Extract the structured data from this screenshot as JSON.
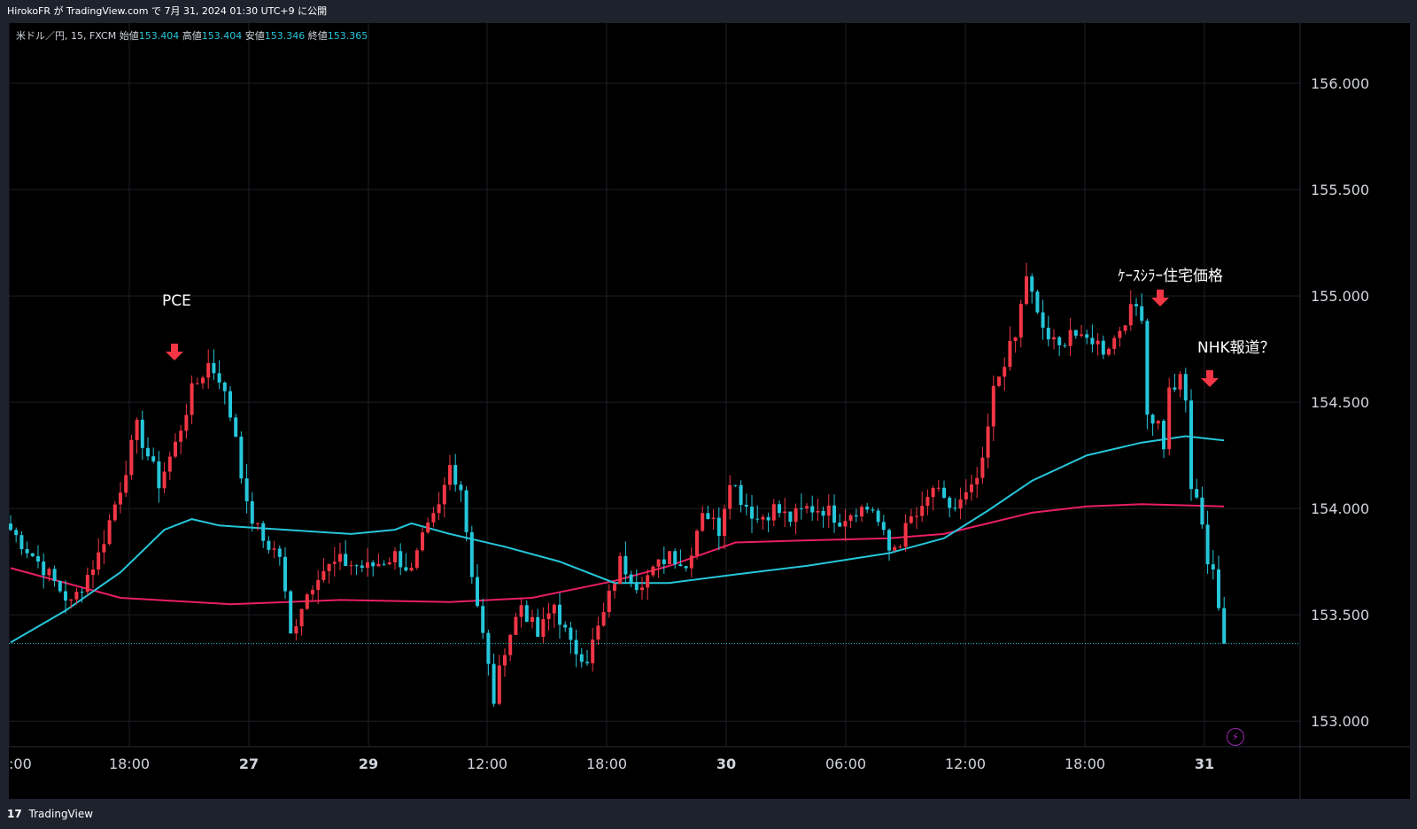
{
  "header": {
    "published_by": "HirokoFR が TradingView.com で 7月 31, 2024 01:30 UTC+9 に公開"
  },
  "legend": {
    "symbol": "米ドル／円, 15, FXCM",
    "open_label": "始値",
    "open": "153.404",
    "high_label": "高値",
    "high": "153.404",
    "low_label": "安値",
    "low": "153.346",
    "close_label": "終値",
    "close": "153.365"
  },
  "annotations": {
    "pce": "PCE",
    "case_shiller": "ｹｰｽｼﾗｰ住宅価格",
    "nhk": "NHK報道？"
  },
  "footer": {
    "brand": "TradingView",
    "logo_glyph": "17"
  },
  "icons": {
    "alert": "lightning-bolt-icon"
  },
  "colors": {
    "up": "#f23645",
    "down": "#26c6da",
    "ma_fast": "#26c6da",
    "ma_slow": "#e91e63",
    "annotation_arrow": "#f23645",
    "last_price_line": "#26c6da"
  },
  "chart_data": {
    "type": "candlestick",
    "timeframe": "15",
    "y_axis_ticks": [
      "153.000",
      "153.500",
      "154.000",
      "154.500",
      "155.000",
      "155.500",
      "156.000"
    ],
    "x_axis_ticks": [
      ":00",
      "18:00",
      "27",
      "29",
      "12:00",
      "18:00",
      "30",
      "06:00",
      "12:00",
      "18:00",
      "31"
    ],
    "ylim": [
      152.88,
      156.25
    ],
    "last_price": 153.365,
    "anchors": [
      {
        "i": 0,
        "p": 153.9
      },
      {
        "i": 6,
        "p": 153.72
      },
      {
        "i": 11,
        "p": 153.55
      },
      {
        "i": 16,
        "p": 153.78
      },
      {
        "i": 20,
        "p": 154.1
      },
      {
        "i": 23,
        "p": 154.38
      },
      {
        "i": 27,
        "p": 154.12
      },
      {
        "i": 30,
        "p": 154.3
      },
      {
        "i": 33,
        "p": 154.55
      },
      {
        "i": 36,
        "p": 154.68
      },
      {
        "i": 38,
        "p": 154.62
      },
      {
        "i": 41,
        "p": 154.35
      },
      {
        "i": 43,
        "p": 154.0
      },
      {
        "i": 46,
        "p": 153.85
      },
      {
        "i": 49,
        "p": 153.78
      },
      {
        "i": 51,
        "p": 153.4
      },
      {
        "i": 53,
        "p": 153.55
      },
      {
        "i": 56,
        "p": 153.7
      },
      {
        "i": 60,
        "p": 153.75
      },
      {
        "i": 65,
        "p": 153.72
      },
      {
        "i": 70,
        "p": 153.78
      },
      {
        "i": 73,
        "p": 153.7
      },
      {
        "i": 75,
        "p": 153.85
      },
      {
        "i": 78,
        "p": 154.0
      },
      {
        "i": 80,
        "p": 154.2
      },
      {
        "i": 82,
        "p": 154.1
      },
      {
        "i": 84,
        "p": 153.7
      },
      {
        "i": 86,
        "p": 153.4
      },
      {
        "i": 88,
        "p": 153.1
      },
      {
        "i": 90,
        "p": 153.35
      },
      {
        "i": 93,
        "p": 153.55
      },
      {
        "i": 96,
        "p": 153.4
      },
      {
        "i": 99,
        "p": 153.55
      },
      {
        "i": 102,
        "p": 153.35
      },
      {
        "i": 105,
        "p": 153.3
      },
      {
        "i": 108,
        "p": 153.5
      },
      {
        "i": 111,
        "p": 153.75
      },
      {
        "i": 114,
        "p": 153.65
      },
      {
        "i": 117,
        "p": 153.7
      },
      {
        "i": 120,
        "p": 153.8
      },
      {
        "i": 123,
        "p": 153.72
      },
      {
        "i": 126,
        "p": 154.0
      },
      {
        "i": 129,
        "p": 153.9
      },
      {
        "i": 131,
        "p": 154.15
      },
      {
        "i": 133,
        "p": 154.05
      },
      {
        "i": 136,
        "p": 153.95
      },
      {
        "i": 139,
        "p": 154.0
      },
      {
        "i": 142,
        "p": 153.95
      },
      {
        "i": 145,
        "p": 154.0
      },
      {
        "i": 148,
        "p": 154.0
      },
      {
        "i": 151,
        "p": 153.95
      },
      {
        "i": 154,
        "p": 154.0
      },
      {
        "i": 157,
        "p": 154.0
      },
      {
        "i": 160,
        "p": 153.8
      },
      {
        "i": 162,
        "p": 153.85
      },
      {
        "i": 164,
        "p": 153.95
      },
      {
        "i": 166,
        "p": 153.98
      },
      {
        "i": 168,
        "p": 154.1
      },
      {
        "i": 170,
        "p": 154.02
      },
      {
        "i": 172,
        "p": 154.0
      },
      {
        "i": 175,
        "p": 154.08
      },
      {
        "i": 177,
        "p": 154.2
      },
      {
        "i": 179,
        "p": 154.55
      },
      {
        "i": 181,
        "p": 154.7
      },
      {
        "i": 183,
        "p": 154.8
      },
      {
        "i": 185,
        "p": 155.1
      },
      {
        "i": 187,
        "p": 154.9
      },
      {
        "i": 189,
        "p": 154.8
      },
      {
        "i": 191,
        "p": 154.75
      },
      {
        "i": 193,
        "p": 154.85
      },
      {
        "i": 195,
        "p": 154.78
      },
      {
        "i": 197,
        "p": 154.8
      },
      {
        "i": 199,
        "p": 154.75
      },
      {
        "i": 201,
        "p": 154.8
      },
      {
        "i": 203,
        "p": 154.9
      },
      {
        "i": 205,
        "p": 154.95
      },
      {
        "i": 206,
        "p": 154.92
      },
      {
        "i": 207,
        "p": 154.45
      },
      {
        "i": 209,
        "p": 154.4
      },
      {
        "i": 210,
        "p": 154.3
      },
      {
        "i": 211,
        "p": 154.55
      },
      {
        "i": 213,
        "p": 154.6
      },
      {
        "i": 214,
        "p": 154.5
      },
      {
        "i": 215,
        "p": 154.1
      },
      {
        "i": 217,
        "p": 153.95
      },
      {
        "i": 218,
        "p": 153.75
      },
      {
        "i": 219,
        "p": 153.72
      },
      {
        "i": 220,
        "p": 153.5
      },
      {
        "i": 221,
        "p": 153.365
      }
    ],
    "ma_fast": [
      {
        "i": 0,
        "p": 153.37
      },
      {
        "i": 10,
        "p": 153.52
      },
      {
        "i": 20,
        "p": 153.7
      },
      {
        "i": 28,
        "p": 153.9
      },
      {
        "i": 33,
        "p": 153.95
      },
      {
        "i": 38,
        "p": 153.92
      },
      {
        "i": 50,
        "p": 153.9
      },
      {
        "i": 62,
        "p": 153.88
      },
      {
        "i": 70,
        "p": 153.9
      },
      {
        "i": 73,
        "p": 153.93
      },
      {
        "i": 80,
        "p": 153.88
      },
      {
        "i": 90,
        "p": 153.82
      },
      {
        "i": 100,
        "p": 153.75
      },
      {
        "i": 110,
        "p": 153.65
      },
      {
        "i": 120,
        "p": 153.65
      },
      {
        "i": 132,
        "p": 153.69
      },
      {
        "i": 145,
        "p": 153.73
      },
      {
        "i": 160,
        "p": 153.79
      },
      {
        "i": 170,
        "p": 153.86
      },
      {
        "i": 178,
        "p": 153.99
      },
      {
        "i": 186,
        "p": 154.13
      },
      {
        "i": 196,
        "p": 154.25
      },
      {
        "i": 206,
        "p": 154.31
      },
      {
        "i": 214,
        "p": 154.34
      },
      {
        "i": 221,
        "p": 154.32
      }
    ],
    "ma_slow": [
      {
        "i": 0,
        "p": 153.72
      },
      {
        "i": 20,
        "p": 153.58
      },
      {
        "i": 40,
        "p": 153.55
      },
      {
        "i": 60,
        "p": 153.57
      },
      {
        "i": 80,
        "p": 153.56
      },
      {
        "i": 95,
        "p": 153.58
      },
      {
        "i": 110,
        "p": 153.66
      },
      {
        "i": 120,
        "p": 153.73
      },
      {
        "i": 132,
        "p": 153.84
      },
      {
        "i": 145,
        "p": 153.85
      },
      {
        "i": 160,
        "p": 153.86
      },
      {
        "i": 170,
        "p": 153.88
      },
      {
        "i": 178,
        "p": 153.93
      },
      {
        "i": 186,
        "p": 153.98
      },
      {
        "i": 196,
        "p": 154.01
      },
      {
        "i": 206,
        "p": 154.02
      },
      {
        "i": 221,
        "p": 154.01
      }
    ]
  }
}
